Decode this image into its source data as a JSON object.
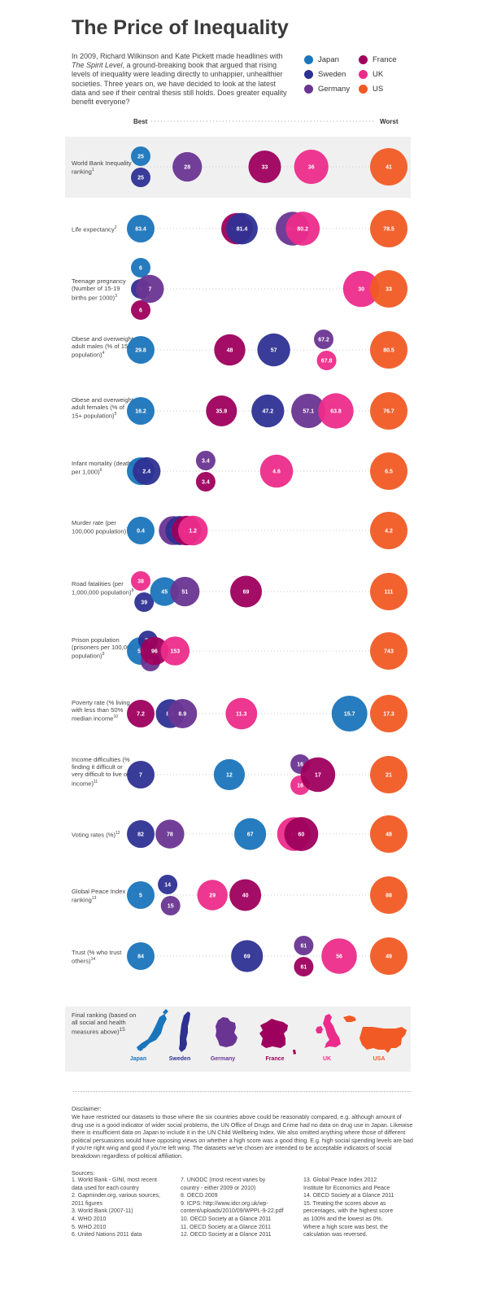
{
  "title": "The Price of Inequality",
  "intro_parts": {
    "a": "In 2009, Richard Wilkinson and Kate Pickett made headlines with ",
    "book": "The Spirit Level",
    "b": ", a ground-breaking book that argued that rising levels of inequality were leading directly to unhappier, unhealthier societies. Three years on, we have decided to look at the latest data and see if their central thesis still holds. Does greater equality benefit everyone?"
  },
  "legend": [
    {
      "country": "Japan",
      "color": "#1a75bb"
    },
    {
      "country": "Sweden",
      "color": "#2e3192"
    },
    {
      "country": "Germany",
      "color": "#6a3592"
    },
    {
      "country": "France",
      "color": "#9e005d"
    },
    {
      "country": "UK",
      "color": "#ec2c8a"
    },
    {
      "country": "US",
      "color": "#f15a24"
    }
  ],
  "scale": {
    "best": "Best",
    "worst": "Worst"
  },
  "rows": [
    {
      "label": "World Bank Inequality ranking",
      "sup": "1"
    },
    {
      "label": "Life expectancy",
      "sup": "2"
    },
    {
      "label": "Teenage pregnancy (Number of 15-19 births per 1000)",
      "sup": "3"
    },
    {
      "label": "Obese and overweight adult males (% of 15+ population)",
      "sup": "4"
    },
    {
      "label": "Obese and overweight adult females (% of 15+ population)",
      "sup": "5"
    },
    {
      "label": "Infant mortality (deaths per 1,000)",
      "sup": "6"
    },
    {
      "label": "Murder rate (per 100,000 population)",
      "sup": "7"
    },
    {
      "label": "Road fatalities (per 1,000,000 population)",
      "sup": "8"
    },
    {
      "label": "Prison population (prisoners per 100,000 population)",
      "sup": "9"
    },
    {
      "label": "Poverty rate (% living with less than 50% median income",
      "sup": "10"
    },
    {
      "label": "Income difficulties (% finding it difficult or very difficult to live on income)",
      "sup": "11"
    },
    {
      "label": "Voting rates (%)",
      "sup": "12"
    },
    {
      "label": "Global Peace Index ranking",
      "sup": "13"
    },
    {
      "label": "Trust (% who trust others)",
      "sup": "14"
    }
  ],
  "chart_data": {
    "type": "scatter",
    "x": "Best to Worst (score)",
    "series_order": [
      "Japan",
      "Sweden",
      "Germany",
      "France",
      "UK",
      "US"
    ],
    "rows": [
      {
        "values": {
          "Japan": "25",
          "Sweden": "25",
          "Germany": "28",
          "France": "33",
          "UK": "36",
          "US": "41"
        }
      },
      {
        "values": {
          "Japan": "83.4",
          "Sweden": "81.4",
          "Germany": "80.4",
          "France": "81.5",
          "UK": "80.2",
          "US": "78.5"
        }
      },
      {
        "values": {
          "Japan": "6",
          "Sweden": "6",
          "Germany": "7",
          "France": "6",
          "UK": "30",
          "US": "33"
        }
      },
      {
        "values": {
          "Japan": "29.8",
          "Sweden": "57",
          "Germany": "67.2",
          "France": "48",
          "UK": "67.8",
          "US": "80.5"
        }
      },
      {
        "values": {
          "Japan": "16.2",
          "Sweden": "47.2",
          "Germany": "57.1",
          "France": "35.9",
          "UK": "63.8",
          "US": "76.7"
        }
      },
      {
        "values": {
          "Japan": "2.3",
          "Sweden": "2.4",
          "Germany": "3.4",
          "France": "3.4",
          "UK": "4.6",
          "US": "6.5"
        }
      },
      {
        "values": {
          "Japan": "0.4",
          "Sweden": "1",
          "Germany": "0.9",
          "France": "1.1",
          "UK": "1.2",
          "US": "4.2"
        }
      },
      {
        "values": {
          "Japan": "45",
          "Sweden": "39",
          "Germany": "51",
          "France": "69",
          "UK": "38",
          "US": "111"
        }
      },
      {
        "values": {
          "Japan": "58",
          "Sweden": "78",
          "Germany": "85",
          "France": "96",
          "UK": "153",
          "US": "743"
        }
      },
      {
        "values": {
          "Japan": "15.7",
          "Sweden": "8.4",
          "Germany": "8.9",
          "France": "7.2",
          "UK": "11.3",
          "US": "17.3"
        }
      },
      {
        "values": {
          "Japan": "12",
          "Sweden": "7",
          "Germany": "16",
          "France": "17",
          "UK": "16",
          "US": "21"
        }
      },
      {
        "values": {
          "Japan": "67",
          "Sweden": "82",
          "Germany": "78",
          "France": "60",
          "UK": "61",
          "US": "48"
        }
      },
      {
        "values": {
          "Japan": "5",
          "Sweden": "14",
          "Germany": "15",
          "France": "40",
          "UK": "29",
          "US": "88"
        }
      },
      {
        "values": {
          "Japan": "84",
          "Sweden": "69",
          "Germany": "61",
          "France": "61",
          "UK": "56",
          "US": "49"
        }
      }
    ]
  },
  "final": {
    "label": "Final ranking (based on all social and health measures above)",
    "sup": "15",
    "countries": [
      "Japan",
      "Sweden",
      "Germany",
      "France",
      "UK",
      "USA"
    ]
  },
  "disclaimer": {
    "head": "Disclaimer:",
    "text": "We have restricted our datasets to those where the six countries above could be reasonably compared, e.g. although amount of drug use is a good indicator of wider social problems, the UN Office of Drugs and Crime had no data on drug use in Japan. Likewise there is insufficient data on Japan to include it in the UN Child Wellbeing Index. We also omitted anything where those of different political persuasions would have opposing views on whether a high score was a good thing. E.g. high social spending levels are bad if you're right wing and good if you're left wing. The datasets we've chosen are intended to be acceptable indicators of social breakdown regardless of political affiliation."
  },
  "sources": {
    "head": "Sources:",
    "col1": [
      "1. World Bank - GINI, most recent",
      "data used for each country",
      "2. Gapminder.org, various sources,",
      "2011 figures",
      "3. World Bank (2007-11)",
      "4. WHO 2010",
      "5. WHO 2010",
      "6. United Nations 2011 data"
    ],
    "col2": [
      "7. UNODC (most recent varies by",
      "country - either 2009 or 2010)",
      "8. OECD 2009",
      "9. ICPS: http://www.idcr.org.uk/wp-",
      "content/uploads/2010/09/WPPL-9-22.pdf",
      "10. OECD Society at a Glance 2011",
      "11. OECD Society at a Glance 2011",
      "12. OECD Society at a Glance 2011"
    ],
    "col3": [
      "13. Global Peace Index 2012",
      "Institute for Economics and Peace",
      "14. OECD Society at a Glance 2011",
      "15. Treating the scores above as",
      "percentages, with the highest score",
      "as 100% and the lowest as 0%.",
      "Where a high score was best, the",
      "calculation was reversed."
    ]
  }
}
